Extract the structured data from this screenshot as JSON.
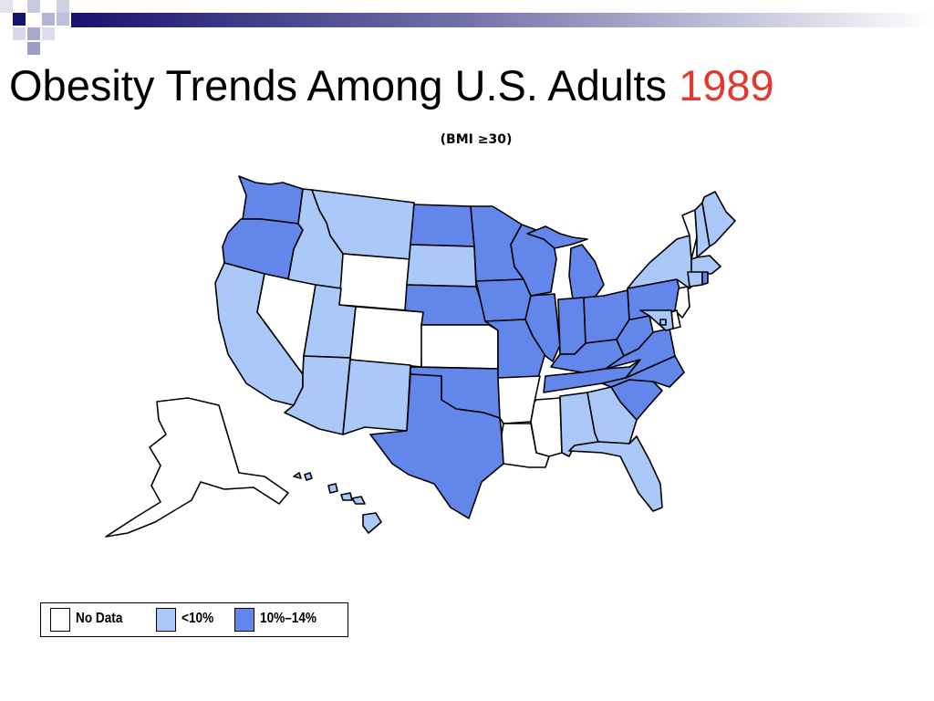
{
  "slide": {
    "title_text": "Obesity Trends Among U.S. Adults ",
    "title_year": "1989",
    "subtitle": "(BMI ≥30)"
  },
  "colors": {
    "no_data": "#ffffff",
    "under_10": "#aac8f8",
    "10_to_14": "#6286ea",
    "title_year": "#e03a2e",
    "header_navy": "#1a1a7a"
  },
  "legend": [
    {
      "category": "no_data",
      "label": "No Data"
    },
    {
      "category": "under_10",
      "label": "<10%"
    },
    {
      "category": "10_to_14",
      "label": "10%–14%"
    }
  ],
  "map_data": {
    "year": 1989,
    "states": {
      "WA": "10_to_14",
      "OR": "10_to_14",
      "CA": "under_10",
      "NV": "no_data",
      "ID": "under_10",
      "MT": "under_10",
      "WY": "no_data",
      "UT": "under_10",
      "CO": "no_data",
      "AZ": "under_10",
      "NM": "under_10",
      "ND": "10_to_14",
      "SD": "under_10",
      "NE": "10_to_14",
      "KS": "no_data",
      "OK": "10_to_14",
      "TX": "10_to_14",
      "MN": "10_to_14",
      "IA": "10_to_14",
      "MO": "10_to_14",
      "AR": "no_data",
      "LA": "no_data",
      "WI": "10_to_14",
      "IL": "10_to_14",
      "MS": "no_data",
      "MI": "10_to_14",
      "IN": "10_to_14",
      "KY": "10_to_14",
      "TN": "10_to_14",
      "AL": "under_10",
      "OH": "10_to_14",
      "WV": "10_to_14",
      "GA": "under_10",
      "FL": "under_10",
      "SC": "10_to_14",
      "NC": "10_to_14",
      "VA": "10_to_14",
      "PA": "10_to_14",
      "NY": "under_10",
      "VT": "no_data",
      "NH": "under_10",
      "ME": "under_10",
      "MA": "under_10",
      "RI": "10_to_14",
      "CT": "under_10",
      "NJ": "no_data",
      "DE": "no_data",
      "MD": "under_10",
      "DC": "under_10",
      "AK": "no_data",
      "HI": "under_10"
    }
  }
}
